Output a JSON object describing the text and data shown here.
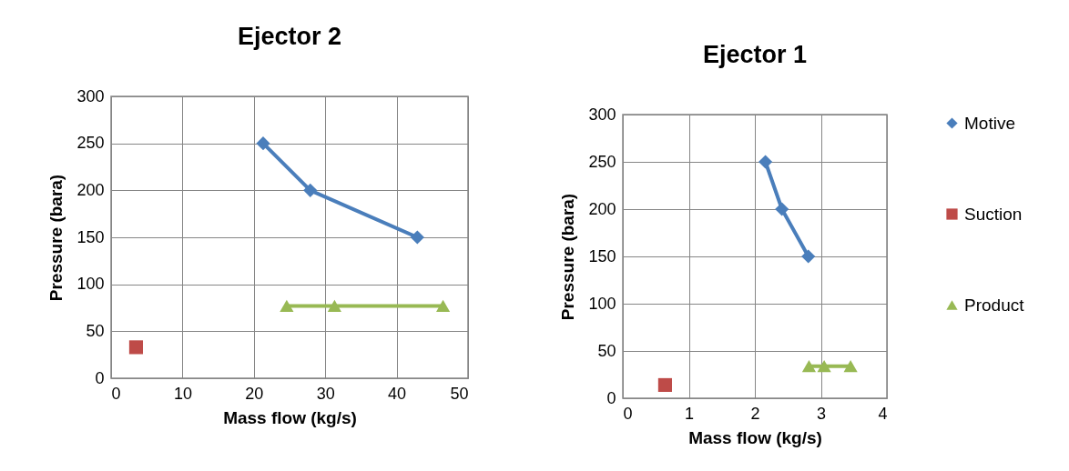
{
  "chart_data": [
    {
      "type": "line",
      "title": "Ejector 2",
      "xlabel": "Mass flow (kg/s)",
      "ylabel": "Pressure (bara)",
      "xlim": [
        0,
        50
      ],
      "xticks": [
        0,
        10,
        20,
        30,
        40,
        50
      ],
      "ylim": [
        0,
        300
      ],
      "yticks": [
        0,
        50,
        100,
        150,
        200,
        250,
        300
      ],
      "grid": true,
      "series": [
        {
          "color": "#4a7ebb",
          "marker": "diamond",
          "x": [
            21.3,
            27.9,
            42.9
          ],
          "values": [
            250,
            200,
            150
          ]
        },
        {
          "color": "#be4b48",
          "marker": "square",
          "x": [
            3.5
          ],
          "values": [
            33
          ]
        },
        {
          "color": "#98b954",
          "marker": "triangle",
          "x": [
            24.6,
            31.3,
            46.5
          ],
          "values": [
            77,
            77,
            77
          ]
        }
      ]
    },
    {
      "type": "line",
      "title": "Ejector 1",
      "xlabel": "Mass flow (kg/s)",
      "ylabel": "Pressure (bara)",
      "xlim": [
        0,
        4
      ],
      "xticks": [
        0,
        1,
        2,
        3,
        4
      ],
      "ylim": [
        0,
        300
      ],
      "yticks": [
        0,
        50,
        100,
        150,
        200,
        250,
        300
      ],
      "grid": true,
      "legend": "right",
      "series": [
        {
          "name": "Motive",
          "color": "#4a7ebb",
          "marker": "diamond",
          "x": [
            2.16,
            2.41,
            2.81
          ],
          "values": [
            250,
            200,
            150
          ]
        },
        {
          "name": "Suction",
          "color": "#be4b48",
          "marker": "square",
          "x": [
            0.64
          ],
          "values": [
            14
          ]
        },
        {
          "name": "Product",
          "color": "#98b954",
          "marker": "triangle",
          "x": [
            2.82,
            3.05,
            3.45
          ],
          "values": [
            34,
            34,
            34
          ]
        }
      ]
    }
  ]
}
